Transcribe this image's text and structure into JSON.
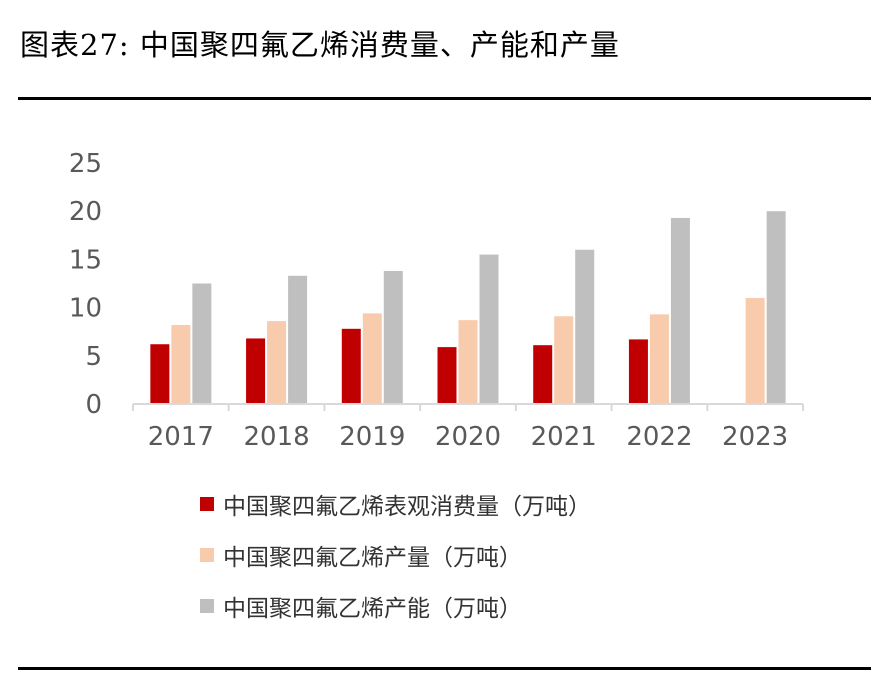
{
  "title": "图表27: 中国聚四氟乙烯消费量、产能和产量",
  "chart_data": {
    "type": "bar",
    "categories": [
      "2017",
      "2018",
      "2019",
      "2020",
      "2021",
      "2022",
      "2023"
    ],
    "ylim": [
      0,
      25
    ],
    "yticks": [
      "0",
      "5",
      "10",
      "15",
      "20",
      "25"
    ],
    "grid": false,
    "legend_position": "bottom",
    "series": [
      {
        "name": "中国聚四氟乙烯表观消费量（万吨）",
        "color": "#c00000",
        "values": [
          6.2,
          6.8,
          7.8,
          5.9,
          6.1,
          6.7,
          null
        ]
      },
      {
        "name": "中国聚四氟乙烯产量（万吨）",
        "color": "#f8cbad",
        "values": [
          8.2,
          8.6,
          9.4,
          8.7,
          9.1,
          9.3,
          11.0
        ]
      },
      {
        "name": "中国聚四氟乙烯产能（万吨）",
        "color": "#bfbfbf",
        "values": [
          12.5,
          13.3,
          13.8,
          15.5,
          16.0,
          19.3,
          20.0
        ]
      }
    ]
  }
}
